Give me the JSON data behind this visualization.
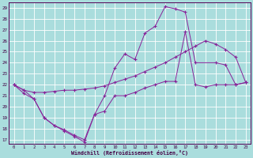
{
  "xlabel": "Windchill (Refroidissement éolien,°C)",
  "line_color": "#882299",
  "bg_color": "#aadddd",
  "grid_color": "#cceeee",
  "xlim_min": -0.5,
  "xlim_max": 23.5,
  "ylim_min": 16.6,
  "ylim_max": 29.5,
  "yticks": [
    17,
    18,
    19,
    20,
    21,
    22,
    23,
    24,
    25,
    26,
    27,
    28,
    29
  ],
  "xticks": [
    0,
    1,
    2,
    3,
    4,
    5,
    6,
    7,
    8,
    9,
    10,
    11,
    12,
    13,
    14,
    15,
    16,
    17,
    18,
    19,
    20,
    21,
    22,
    23
  ],
  "line1_x": [
    0,
    1,
    2,
    3,
    4,
    5,
    6,
    7,
    8,
    9,
    10,
    11,
    12,
    13,
    14,
    15,
    16,
    17,
    18,
    19,
    20,
    21,
    22,
    23
  ],
  "line1_y": [
    22.0,
    21.5,
    21.3,
    21.3,
    21.4,
    21.5,
    21.5,
    21.6,
    21.7,
    21.9,
    22.2,
    22.5,
    22.8,
    23.2,
    23.6,
    24.0,
    24.5,
    25.0,
    25.5,
    26.0,
    25.7,
    25.2,
    24.5,
    22.2
  ],
  "line2_x": [
    0,
    1,
    2,
    3,
    4,
    5,
    6,
    7,
    8,
    9,
    10,
    11,
    12,
    13,
    14,
    15,
    16,
    17,
    18,
    20,
    21,
    22,
    23
  ],
  "line2_y": [
    22.0,
    21.5,
    20.7,
    19.0,
    18.3,
    17.8,
    17.3,
    16.8,
    19.3,
    21.0,
    23.5,
    24.8,
    24.3,
    26.7,
    27.3,
    29.1,
    28.9,
    28.6,
    24.0,
    24.0,
    23.8,
    22.0,
    22.2
  ],
  "line3_x": [
    0,
    1,
    2,
    3,
    4,
    5,
    6,
    7,
    8,
    9,
    10,
    11,
    12,
    13,
    14,
    15,
    16,
    17,
    18,
    19,
    20,
    21,
    22,
    23
  ],
  "line3_y": [
    22.0,
    21.2,
    20.7,
    19.0,
    18.3,
    17.9,
    17.4,
    17.0,
    19.3,
    19.6,
    21.0,
    21.0,
    21.3,
    21.7,
    22.0,
    22.3,
    22.3,
    26.8,
    22.0,
    21.8,
    22.0,
    22.0,
    22.0,
    22.2
  ]
}
